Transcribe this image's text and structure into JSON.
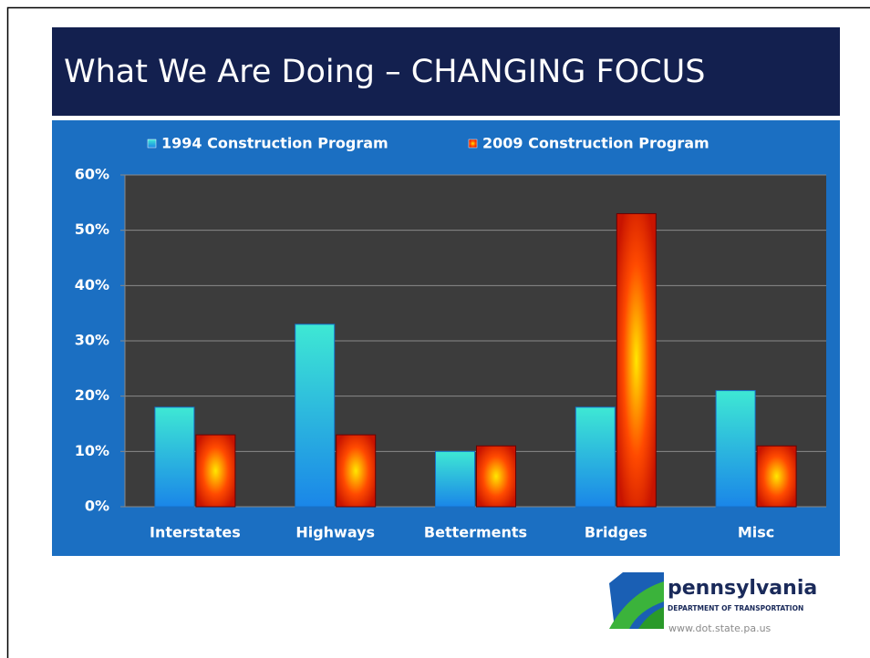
{
  "title": "What We Are Doing – CHANGING FOCUS",
  "chart_data": {
    "type": "bar",
    "categories": [
      "Interstates",
      "Highways",
      "Betterments",
      "Bridges",
      "Misc"
    ],
    "series": [
      {
        "name": "1994 Construction Program",
        "color": "#1a86e8",
        "values": [
          18,
          33,
          10,
          18,
          21
        ]
      },
      {
        "name": "2009 Construction Program",
        "color": "#c81400",
        "values": [
          13,
          13,
          11,
          53,
          11
        ]
      }
    ],
    "ylim": [
      0,
      60
    ],
    "yticks": [
      {
        "value": 0,
        "label": "0%"
      },
      {
        "value": 10,
        "label": "10%"
      },
      {
        "value": 20,
        "label": "20%"
      },
      {
        "value": 30,
        "label": "30%"
      },
      {
        "value": 40,
        "label": "40%"
      },
      {
        "value": 50,
        "label": "50%"
      },
      {
        "value": 60,
        "label": "60%"
      }
    ],
    "grid": true,
    "legend": "top"
  },
  "logo": {
    "name": "pennsylvania",
    "subtitle": "DEPARTMENT OF TRANSPORTATION",
    "url": "www.dot.state.pa.us"
  }
}
